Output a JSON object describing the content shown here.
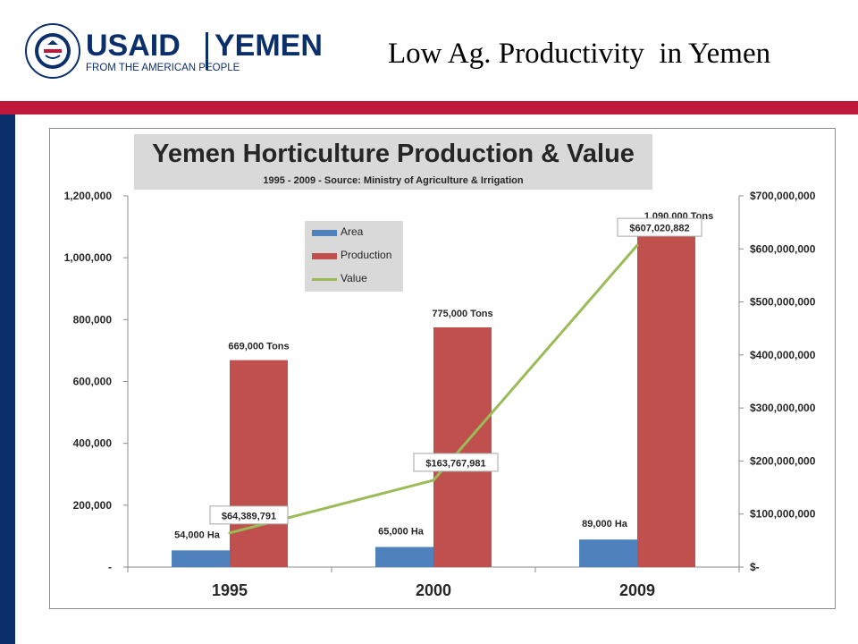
{
  "header": {
    "logo_brand": "USAID",
    "logo_country": "YEMEN",
    "logo_tagline": "FROM THE AMERICAN PEOPLE",
    "seal_text": "UNITED STATES AGENCY FOR INTERNATIONAL DEVELOPMENT",
    "slide_title": "Low Ag. Productivity  in Yemen"
  },
  "colors": {
    "navy": "#0b2f6b",
    "crimson": "#c0183a",
    "area": "#4f81bd",
    "production": "#c0504d",
    "value": "#9bbb59"
  },
  "chart_data": {
    "type": "bar",
    "title": "Yemen Horticulture Production & Value",
    "subtitle": "1995 - 2009 - Source: Ministry of Agriculture & Irrigation",
    "categories": [
      "1995",
      "2000",
      "2009"
    ],
    "series": [
      {
        "name": "Area",
        "type": "bar",
        "axis": "left",
        "values": [
          54000,
          65000,
          89000
        ],
        "labels": [
          "54,000 Ha",
          "65,000 Ha",
          "89,000 Ha"
        ]
      },
      {
        "name": "Production",
        "type": "bar",
        "axis": "left",
        "values": [
          669000,
          775000,
          1090000
        ],
        "labels": [
          "669,000 Tons",
          "775,000 Tons",
          "1,090,000  Tons"
        ]
      },
      {
        "name": "Value",
        "type": "line",
        "axis": "right",
        "values": [
          64389791,
          163767981,
          607020882
        ],
        "labels": [
          "$64,389,791",
          "$163,767,981",
          "$607,020,882"
        ]
      }
    ],
    "y_left": {
      "min": 0,
      "max": 1200000,
      "ticks": [
        0,
        200000,
        400000,
        600000,
        800000,
        1000000,
        1200000
      ],
      "tick_labels": [
        "-",
        "200,000",
        "400,000",
        "600,000",
        "800,000",
        "1,000,000",
        "1,200,000"
      ]
    },
    "y_right": {
      "min": 0,
      "max": 700000000,
      "ticks": [
        0,
        100000000,
        200000000,
        300000000,
        400000000,
        500000000,
        600000000,
        700000000
      ],
      "tick_labels": [
        "$-",
        "$100,000,000",
        "$200,000,000",
        "$300,000,000",
        "$400,000,000",
        "$500,000,000",
        "$600,000,000",
        "$700,000,000"
      ]
    },
    "legend": [
      "Area",
      "Production",
      "Value"
    ],
    "legend_position": "top-left",
    "grid": false
  }
}
